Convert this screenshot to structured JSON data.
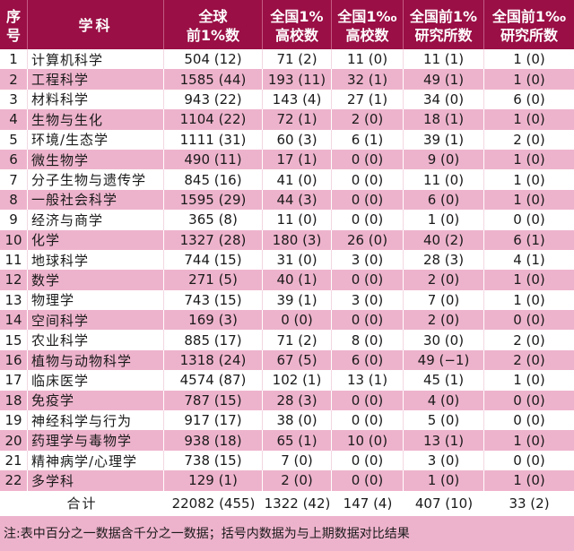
{
  "header": {
    "columns": [
      "序\n号",
      "学科",
      "全球\n前1%数",
      "全国1%\n高校数",
      "全国1‰\n高校数",
      "全国前1%\n研究所数",
      "全国前1‰\n研究所数"
    ]
  },
  "colors": {
    "header_bg": "#9a0f45",
    "header_text": "#ffffff",
    "stripe_pink": "#eeb3cc",
    "stripe_white": "#ffffff"
  },
  "rows": [
    {
      "no": "1",
      "subject": "计算机科学",
      "global": "504 (12)",
      "univ_1pct": "71 (2)",
      "univ_1permil": "11 (0)",
      "inst_1pct": "11 (1)",
      "inst_1permil": "1 (0)"
    },
    {
      "no": "2",
      "subject": "工程科学",
      "global": "1585 (44)",
      "univ_1pct": "193 (11)",
      "univ_1permil": "32 (1)",
      "inst_1pct": "49 (1)",
      "inst_1permil": "1 (0)"
    },
    {
      "no": "3",
      "subject": "材料科学",
      "global": "943 (22)",
      "univ_1pct": "143 (4)",
      "univ_1permil": "27 (1)",
      "inst_1pct": "34 (0)",
      "inst_1permil": "6 (0)"
    },
    {
      "no": "4",
      "subject": "生物与生化",
      "global": "1104 (22)",
      "univ_1pct": "72 (1)",
      "univ_1permil": "2 (0)",
      "inst_1pct": "18 (1)",
      "inst_1permil": "1 (0)"
    },
    {
      "no": "5",
      "subject": "环境/生态学",
      "global": "1111 (31)",
      "univ_1pct": "60 (3)",
      "univ_1permil": "6 (1)",
      "inst_1pct": "39 (1)",
      "inst_1permil": "2 (0)"
    },
    {
      "no": "6",
      "subject": "微生物学",
      "global": "490 (11)",
      "univ_1pct": "17 (1)",
      "univ_1permil": "0 (0)",
      "inst_1pct": "9 (0)",
      "inst_1permil": "1 (0)"
    },
    {
      "no": "7",
      "subject": "分子生物与遗传学",
      "global": "845 (16)",
      "univ_1pct": "41 (0)",
      "univ_1permil": "0 (0)",
      "inst_1pct": "11 (0)",
      "inst_1permil": "1 (0)"
    },
    {
      "no": "8",
      "subject": "一般社会科学",
      "global": "1595 (29)",
      "univ_1pct": "44 (3)",
      "univ_1permil": "0 (0)",
      "inst_1pct": "6 (0)",
      "inst_1permil": "1 (0)"
    },
    {
      "no": "9",
      "subject": "经济与商学",
      "global": "365 (8)",
      "univ_1pct": "11 (0)",
      "univ_1permil": "0 (0)",
      "inst_1pct": "1 (0)",
      "inst_1permil": "0 (0)"
    },
    {
      "no": "10",
      "subject": "化学",
      "global": "1327 (28)",
      "univ_1pct": "180 (3)",
      "univ_1permil": "26 (0)",
      "inst_1pct": "40 (2)",
      "inst_1permil": "6 (1)"
    },
    {
      "no": "11",
      "subject": "地球科学",
      "global": "744 (15)",
      "univ_1pct": "31 (0)",
      "univ_1permil": "3 (0)",
      "inst_1pct": "28 (3)",
      "inst_1permil": "4 (1)"
    },
    {
      "no": "12",
      "subject": "数学",
      "global": "271 (5)",
      "univ_1pct": "40 (1)",
      "univ_1permil": "0 (0)",
      "inst_1pct": "2 (0)",
      "inst_1permil": "1 (0)"
    },
    {
      "no": "13",
      "subject": "物理学",
      "global": "743 (15)",
      "univ_1pct": "39 (1)",
      "univ_1permil": "3 (0)",
      "inst_1pct": "7 (0)",
      "inst_1permil": "1 (0)"
    },
    {
      "no": "14",
      "subject": "空间科学",
      "global": "169 (3)",
      "univ_1pct": "0 (0)",
      "univ_1permil": "0 (0)",
      "inst_1pct": "2 (0)",
      "inst_1permil": "0 (0)"
    },
    {
      "no": "15",
      "subject": "农业科学",
      "global": "885 (17)",
      "univ_1pct": "71 (2)",
      "univ_1permil": "8 (0)",
      "inst_1pct": "30 (0)",
      "inst_1permil": "2 (0)"
    },
    {
      "no": "16",
      "subject": "植物与动物科学",
      "global": "1318 (24)",
      "univ_1pct": "67 (5)",
      "univ_1permil": "6 (0)",
      "inst_1pct": "49 (−1)",
      "inst_1permil": "2 (0)"
    },
    {
      "no": "17",
      "subject": "临床医学",
      "global": "4574 (87)",
      "univ_1pct": "102 (1)",
      "univ_1permil": "13 (1)",
      "inst_1pct": "45 (1)",
      "inst_1permil": "1 (0)"
    },
    {
      "no": "18",
      "subject": "免疫学",
      "global": "787 (15)",
      "univ_1pct": "28 (3)",
      "univ_1permil": "0 (0)",
      "inst_1pct": "4 (0)",
      "inst_1permil": "0 (0)"
    },
    {
      "no": "19",
      "subject": "神经科学与行为",
      "global": "917 (17)",
      "univ_1pct": "38 (0)",
      "univ_1permil": "0 (0)",
      "inst_1pct": "5 (0)",
      "inst_1permil": "0 (0)"
    },
    {
      "no": "20",
      "subject": "药理学与毒物学",
      "global": "938 (18)",
      "univ_1pct": "65 (1)",
      "univ_1permil": "10 (0)",
      "inst_1pct": "13 (1)",
      "inst_1permil": "1 (0)"
    },
    {
      "no": "21",
      "subject": "精神病学/心理学",
      "global": "738 (15)",
      "univ_1pct": "7 (0)",
      "univ_1permil": "0 (0)",
      "inst_1pct": "3 (0)",
      "inst_1permil": "0 (0)"
    },
    {
      "no": "22",
      "subject": "多学科",
      "global": "129 (1)",
      "univ_1pct": "2 (0)",
      "univ_1permil": "0 (0)",
      "inst_1pct": "1 (0)",
      "inst_1permil": "1 (0)"
    }
  ],
  "total": {
    "label": "合计",
    "global": "22082 (455)",
    "univ_1pct": "1322 (42)",
    "univ_1permil": "147 (4)",
    "inst_1pct": "407 (10)",
    "inst_1permil": "33 (2)"
  },
  "note": "注:表中百分之一数据含千分之一数据；括号内数据为与上期数据对比结果"
}
